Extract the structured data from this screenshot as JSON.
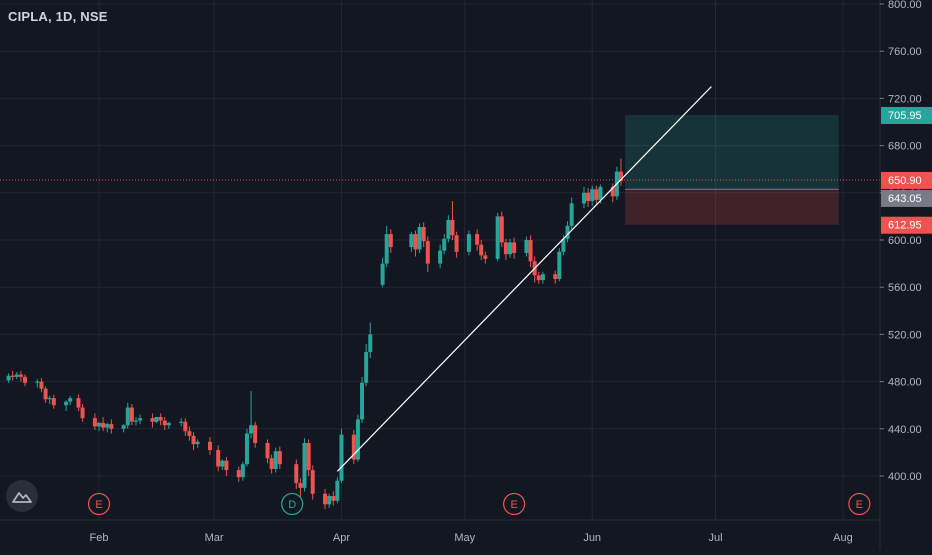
{
  "header": {
    "symbol": "CIPLA, 1D, NSE"
  },
  "colors": {
    "background": "#131722",
    "grid": "#232734",
    "up": "#26a69a",
    "down": "#ef5350",
    "text": "#b2b5be",
    "price_line": "#ef5350",
    "target_zone": "#26a69a",
    "stop_zone": "#ef5350",
    "entry_label_bg": "#787b86"
  },
  "events": [
    {
      "label": "E",
      "date": "2022-02-01"
    },
    {
      "label": "D",
      "date": "2022-03-20"
    },
    {
      "label": "E",
      "date": "2022-05-13"
    },
    {
      "label": "E",
      "date": "2022-08-05"
    }
  ],
  "chart_data": {
    "type": "candlestick",
    "title": "CIPLA, 1D, NSE",
    "xlabel": "",
    "ylabel": "",
    "y_axis_side": "right",
    "ylim": [
      368,
      802
    ],
    "y_ticks": [
      400,
      440,
      480,
      520,
      560,
      600,
      640,
      680,
      720,
      760,
      800
    ],
    "y_tick_labels": [
      "400.00",
      "440.00",
      "480.00",
      "520.00",
      "560.00",
      "600.00",
      "640.00",
      "680.00",
      "720.00",
      "760.00",
      "800.00"
    ],
    "x_ticks": [
      {
        "label": "Feb",
        "date": "2022-02-01"
      },
      {
        "label": "Mar",
        "date": "2022-03-01"
      },
      {
        "label": "Apr",
        "date": "2022-04-01"
      },
      {
        "label": "May",
        "date": "2022-05-01"
      },
      {
        "label": "Jun",
        "date": "2022-06-01"
      },
      {
        "label": "Jul",
        "date": "2022-07-01"
      },
      {
        "label": "Aug",
        "date": "2022-08-01"
      }
    ],
    "xlim": [
      "2022-01-06",
      "2022-08-15"
    ],
    "grid": true,
    "last_price": 650.9,
    "price_labels": [
      {
        "value": 705.95,
        "label": "705.95",
        "role": "target"
      },
      {
        "value": 650.9,
        "label": "650.90",
        "role": "last"
      },
      {
        "value": 643.05,
        "label": "643.05",
        "role": "entry"
      },
      {
        "value": 612.95,
        "label": "612.95",
        "role": "stop"
      }
    ],
    "position": {
      "start": "2022-06-09",
      "end": "2022-07-31",
      "entry": 643.05,
      "target": 705.95,
      "stop": 612.95
    },
    "trendline": [
      {
        "date": "2022-03-31",
        "value": 404
      },
      {
        "date": "2022-06-30",
        "value": 730
      }
    ],
    "candles": [
      [
        "2022-01-06",
        475,
        479,
        477,
        473
      ],
      [
        "2022-01-07",
        477,
        483,
        481,
        476
      ],
      [
        "2022-01-10",
        481,
        487,
        485,
        479
      ],
      [
        "2022-01-11",
        485,
        489,
        484,
        481
      ],
      [
        "2022-01-12",
        484,
        488,
        486,
        482
      ],
      [
        "2022-01-13",
        486,
        489,
        484,
        480
      ],
      [
        "2022-01-14",
        484,
        486,
        479,
        476
      ],
      [
        "2022-01-17",
        479,
        482,
        480,
        475
      ],
      [
        "2022-01-18",
        480,
        483,
        474,
        471
      ],
      [
        "2022-01-19",
        474,
        476,
        465,
        462
      ],
      [
        "2022-01-20",
        465,
        468,
        466,
        461
      ],
      [
        "2022-01-21",
        466,
        469,
        460,
        457
      ],
      [
        "2022-01-24",
        460,
        464,
        463,
        455
      ],
      [
        "2022-01-25",
        463,
        468,
        466,
        460
      ],
      [
        "2022-01-27",
        466,
        469,
        458,
        455
      ],
      [
        "2022-01-28",
        458,
        461,
        449,
        446
      ],
      [
        "2022-01-31",
        449,
        453,
        442,
        439
      ],
      [
        "2022-02-01",
        442,
        446,
        445,
        438
      ],
      [
        "2022-02-02",
        445,
        450,
        441,
        438
      ],
      [
        "2022-02-03",
        441,
        445,
        444,
        437
      ],
      [
        "2022-02-04",
        444,
        448,
        440,
        436
      ],
      [
        "2022-02-07",
        440,
        444,
        443,
        437
      ],
      [
        "2022-02-08",
        443,
        462,
        458,
        440
      ],
      [
        "2022-02-09",
        458,
        461,
        446,
        443
      ],
      [
        "2022-02-10",
        446,
        450,
        447,
        443
      ],
      [
        "2022-02-11",
        447,
        452,
        449,
        444
      ],
      [
        "2022-02-14",
        449,
        453,
        446,
        441
      ],
      [
        "2022-02-15",
        446,
        450,
        450,
        445
      ],
      [
        "2022-02-16",
        450,
        453,
        447,
        443
      ],
      [
        "2022-02-17",
        447,
        450,
        443,
        439
      ],
      [
        "2022-02-18",
        443,
        446,
        445,
        440
      ],
      [
        "2022-02-21",
        445,
        449,
        446,
        442
      ],
      [
        "2022-02-22",
        446,
        449,
        438,
        434
      ],
      [
        "2022-02-23",
        438,
        442,
        434,
        430
      ],
      [
        "2022-02-24",
        434,
        437,
        427,
        422
      ],
      [
        "2022-02-25",
        427,
        431,
        429,
        424
      ],
      [
        "2022-02-28",
        429,
        433,
        422,
        418
      ],
      [
        "2022-03-02",
        422,
        426,
        408,
        404
      ],
      [
        "2022-03-03",
        408,
        414,
        413,
        405
      ],
      [
        "2022-03-04",
        413,
        416,
        405,
        400
      ],
      [
        "2022-03-07",
        405,
        408,
        399,
        395
      ],
      [
        "2022-03-08",
        399,
        412,
        410,
        396
      ],
      [
        "2022-03-09",
        410,
        440,
        436,
        408
      ],
      [
        "2022-03-10",
        436,
        472,
        443,
        432
      ],
      [
        "2022-03-11",
        443,
        446,
        428,
        424
      ],
      [
        "2022-03-14",
        428,
        431,
        415,
        411
      ],
      [
        "2022-03-15",
        415,
        418,
        406,
        402
      ],
      [
        "2022-03-16",
        406,
        424,
        421,
        403
      ],
      [
        "2022-03-17",
        421,
        425,
        410,
        406
      ],
      [
        "2022-03-21",
        410,
        414,
        394,
        389
      ],
      [
        "2022-03-22",
        394,
        398,
        390,
        373
      ],
      [
        "2022-03-23",
        390,
        432,
        428,
        387
      ],
      [
        "2022-03-24",
        428,
        431,
        405,
        400
      ],
      [
        "2022-03-25",
        405,
        409,
        385,
        380
      ],
      [
        "2022-03-28",
        385,
        389,
        376,
        372
      ],
      [
        "2022-03-29",
        376,
        385,
        383,
        373
      ],
      [
        "2022-03-30",
        383,
        387,
        379,
        375
      ],
      [
        "2022-03-31",
        379,
        399,
        396,
        377
      ],
      [
        "2022-04-01",
        396,
        440,
        435,
        394
      ],
      [
        "2022-04-04",
        435,
        439,
        414,
        410
      ],
      [
        "2022-04-05",
        414,
        452,
        448,
        412
      ],
      [
        "2022-04-06",
        448,
        484,
        479,
        445
      ],
      [
        "2022-04-07",
        479,
        512,
        505,
        476
      ],
      [
        "2022-04-08",
        505,
        530,
        520,
        500
      ],
      [
        "2022-04-11",
        562,
        585,
        580,
        560
      ],
      [
        "2022-04-12",
        580,
        612,
        605,
        577
      ],
      [
        "2022-04-13",
        605,
        609,
        594,
        589
      ],
      [
        "2022-04-18",
        594,
        607,
        605,
        590
      ],
      [
        "2022-04-19",
        605,
        608,
        592,
        586
      ],
      [
        "2022-04-20",
        592,
        614,
        611,
        589
      ],
      [
        "2022-04-21",
        611,
        615,
        599,
        594
      ],
      [
        "2022-04-22",
        599,
        603,
        580,
        573
      ],
      [
        "2022-04-25",
        580,
        596,
        591,
        576
      ],
      [
        "2022-04-26",
        591,
        605,
        601,
        588
      ],
      [
        "2022-04-27",
        601,
        621,
        617,
        598
      ],
      [
        "2022-04-28",
        617,
        633,
        604,
        600
      ],
      [
        "2022-04-29",
        604,
        607,
        590,
        585
      ],
      [
        "2022-05-02",
        590,
        608,
        605,
        587
      ],
      [
        "2022-05-04",
        605,
        609,
        596,
        591
      ],
      [
        "2022-05-05",
        596,
        600,
        587,
        583
      ],
      [
        "2022-05-06",
        587,
        590,
        584,
        580
      ],
      [
        "2022-05-09",
        584,
        623,
        620,
        582
      ],
      [
        "2022-05-10",
        620,
        624,
        598,
        594
      ],
      [
        "2022-05-11",
        598,
        601,
        588,
        583
      ],
      [
        "2022-05-12",
        588,
        601,
        598,
        585
      ],
      [
        "2022-05-13",
        598,
        602,
        589,
        584
      ],
      [
        "2022-05-16",
        589,
        603,
        600,
        586
      ],
      [
        "2022-05-17",
        600,
        604,
        582,
        577
      ],
      [
        "2022-05-18",
        582,
        586,
        570,
        564
      ],
      [
        "2022-05-19",
        570,
        573,
        566,
        563
      ],
      [
        "2022-05-20",
        566,
        573,
        571,
        563
      ],
      [
        "2022-05-23",
        571,
        574,
        567,
        563
      ],
      [
        "2022-05-24",
        567,
        593,
        590,
        565
      ],
      [
        "2022-05-25",
        590,
        604,
        601,
        587
      ],
      [
        "2022-05-26",
        601,
        616,
        612,
        598
      ],
      [
        "2022-05-27",
        612,
        636,
        631,
        609
      ],
      [
        "2022-05-30",
        631,
        645,
        640,
        627
      ],
      [
        "2022-05-31",
        640,
        644,
        633,
        628
      ],
      [
        "2022-06-01",
        633,
        646,
        643,
        629
      ],
      [
        "2022-06-02",
        643,
        646,
        634,
        630
      ],
      [
        "2022-06-03",
        634,
        647,
        645,
        631
      ],
      [
        "2022-06-06",
        645,
        648,
        637,
        632
      ],
      [
        "2022-06-07",
        637,
        662,
        658,
        634
      ],
      [
        "2022-06-08",
        658,
        669,
        650,
        646
      ]
    ]
  }
}
